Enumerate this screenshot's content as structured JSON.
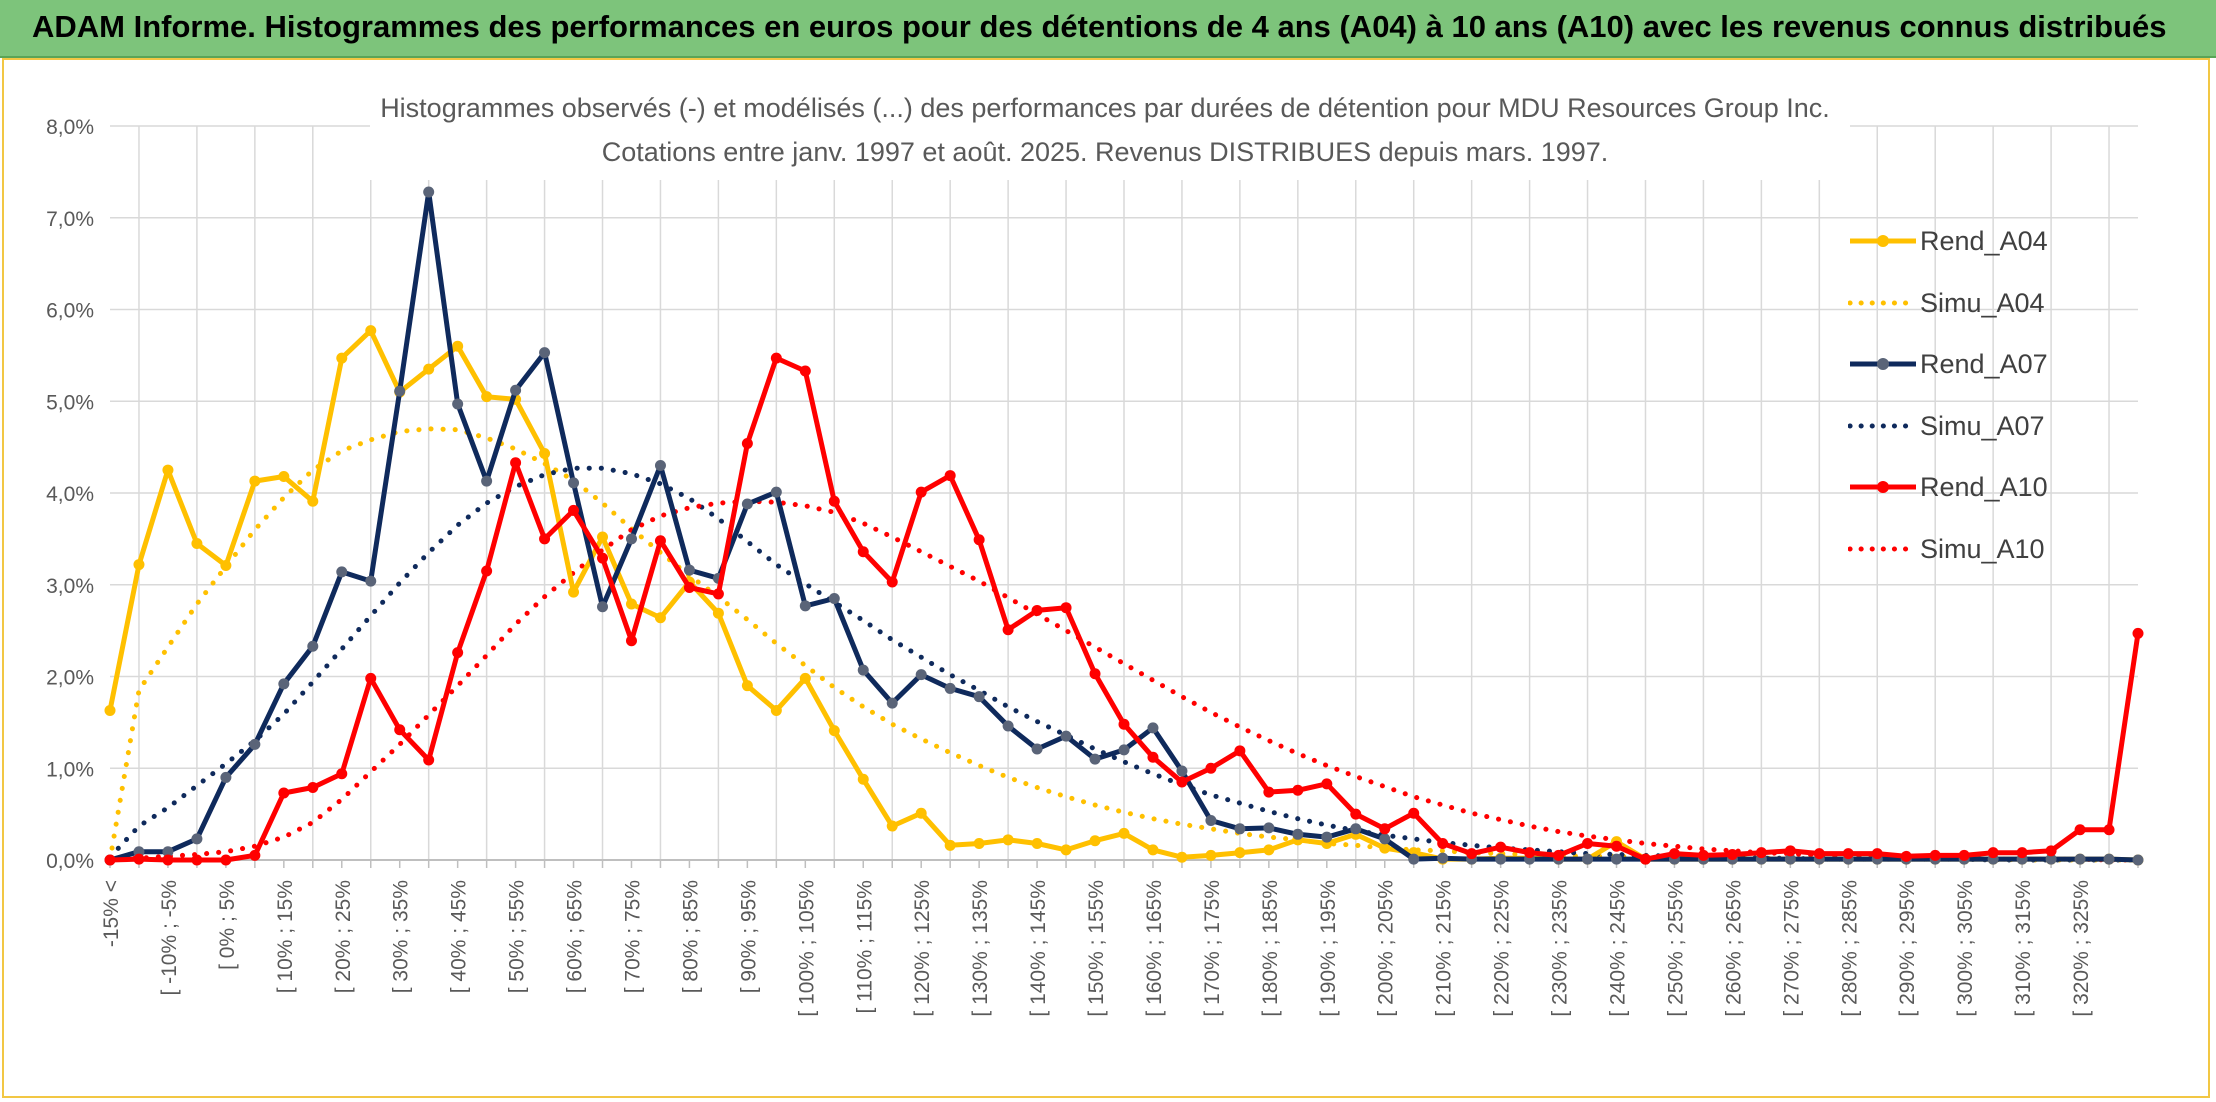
{
  "banner": {
    "title": "ADAM Informe. Histogrammes des performances en euros pour des détentions de 4 ans (A04) à 10 ans (A10) avec les revenus connus distribués"
  },
  "colors": {
    "banner": "#7dc47b",
    "frame": "#f2c744",
    "A04": "#ffc000",
    "A07": "#0f2a5c",
    "A10": "#ff0000",
    "grid": "#d9d9d9"
  },
  "chart_data": {
    "type": "line",
    "title": "Histogrammes observés (-) et modélisés (...) des performances par durées de détention pour MDU Resources Group Inc.",
    "subtitle": "Cotations entre janv. 1997 et août. 2025. Revenus DISTRIBUES depuis mars. 1997.",
    "ylim": [
      0,
      0.08
    ],
    "yticks": [
      "0,0%",
      "1,0%",
      "2,0%",
      "3,0%",
      "4,0%",
      "5,0%",
      "6,0%",
      "7,0%",
      "8,0%"
    ],
    "grid": true,
    "legend_position": "right",
    "categories": [
      "-15% <",
      "",
      "[ -10% ; -5%",
      "",
      "[ 0% ; 5%",
      "",
      "[ 10% ; 15%",
      "",
      "[ 20% ; 25%",
      "",
      "[ 30% ; 35%",
      "",
      "[ 40% ; 45%",
      "",
      "[ 50% ; 55%",
      "",
      "[ 60% ; 65%",
      "",
      "[ 70% ; 75%",
      "",
      "[ 80% ; 85%",
      "",
      "[ 90% ; 95%",
      "",
      "[ 100% ; 105%",
      "",
      "[ 110% ; 115%",
      "",
      "[ 120% ; 125%",
      "",
      "[ 130% ; 135%",
      "",
      "[ 140% ; 145%",
      "",
      "[ 150% ; 155%",
      "",
      "[ 160% ; 165%",
      "",
      "[ 170% ; 175%",
      "",
      "[ 180% ; 185%",
      "",
      "[ 190% ; 195%",
      "",
      "[ 200% ; 205%",
      "",
      "[ 210% ; 215%",
      "",
      "[ 220% ; 225%",
      "",
      "[ 230% ; 235%",
      "",
      "[ 240% ; 245%",
      "",
      "[ 250% ; 255%",
      "",
      "[ 260% ; 265%",
      "",
      "[ 270% ; 275%",
      "",
      "[ 280% ; 285%",
      "",
      "[ 290% ; 295%",
      "",
      "[ 300% ; 305%",
      "",
      "[ 310% ; 315%",
      "",
      "[ 320% ; 325%",
      "",
      ""
    ],
    "series": [
      {
        "name": "Rend_A04",
        "style": "solid",
        "color": "#ffc000",
        "values": [
          0.0163,
          0.0322,
          0.0425,
          0.0345,
          0.0321,
          0.0413,
          0.0418,
          0.0391,
          0.0547,
          0.0577,
          0.051,
          0.0535,
          0.056,
          0.0505,
          0.0502,
          0.0443,
          0.0292,
          0.0352,
          0.0279,
          0.0264,
          0.0303,
          0.0269,
          0.019,
          0.0163,
          0.0198,
          0.0141,
          0.0088,
          0.0037,
          0.0051,
          0.0016,
          0.0018,
          0.0022,
          0.0018,
          0.0011,
          0.0021,
          0.0029,
          0.0011,
          0.0003,
          0.0005,
          0.0008,
          0.0011,
          0.0022,
          0.0018,
          0.0028,
          0.0013,
          0.0008,
          0.0001,
          0.0001,
          0.0002,
          0.0002,
          0.0001,
          0.0001,
          0.002,
          0.0001,
          0.0001,
          0.0001,
          0.0001,
          0.0001,
          0.0001,
          0.0001,
          0.0001,
          0.0001,
          0.0001,
          0.0001,
          0.0001,
          0.0001,
          0.0001,
          0.0001,
          0.0001,
          0.0001,
          0.0
        ]
      },
      {
        "name": "Simu_A04",
        "style": "dotted",
        "color": "#ffc000",
        "values": [
          0.0,
          0.0185,
          0.0232,
          0.0279,
          0.032,
          0.036,
          0.0395,
          0.0425,
          0.0446,
          0.0458,
          0.0467,
          0.047,
          0.0469,
          0.046,
          0.0448,
          0.0432,
          0.0414,
          0.0389,
          0.0361,
          0.0335,
          0.031,
          0.0287,
          0.0262,
          0.0236,
          0.0212,
          0.0188,
          0.0167,
          0.0148,
          0.0132,
          0.0117,
          0.0103,
          0.009,
          0.0079,
          0.0069,
          0.006,
          0.0052,
          0.0045,
          0.0039,
          0.0034,
          0.0029,
          0.0025,
          0.0022,
          0.0018,
          0.0016,
          0.0013,
          0.0011,
          0.001,
          0.0008,
          0.0007,
          0.0006,
          0.0005,
          0.0004,
          0.0004,
          0.0003,
          0.0003,
          0.0002,
          0.0002,
          0.0002,
          0.0001,
          0.0001,
          0.0001,
          0.0001,
          0.0001,
          0.0001,
          0.0001,
          0.0001,
          0.0,
          0.0,
          0.0,
          0.0,
          0.0
        ]
      },
      {
        "name": "Rend_A07",
        "style": "solid",
        "color": "#0f2a5c",
        "values": [
          0.0,
          0.0009,
          0.0009,
          0.0023,
          0.009,
          0.0126,
          0.0192,
          0.0233,
          0.0314,
          0.0304,
          0.0511,
          0.0728,
          0.0497,
          0.0413,
          0.0512,
          0.0553,
          0.0411,
          0.0276,
          0.035,
          0.043,
          0.0316,
          0.0307,
          0.0388,
          0.0401,
          0.0277,
          0.0285,
          0.0207,
          0.0171,
          0.0202,
          0.0187,
          0.0178,
          0.0146,
          0.0121,
          0.0135,
          0.011,
          0.012,
          0.0144,
          0.0097,
          0.0043,
          0.0034,
          0.0035,
          0.0028,
          0.0025,
          0.0034,
          0.0023,
          0.0001,
          0.0002,
          0.0001,
          0.0001,
          0.0001,
          0.0001,
          0.0001,
          0.0001,
          0.0001,
          0.0001,
          0.0001,
          0.0001,
          0.0001,
          0.0001,
          0.0001,
          0.0001,
          0.0001,
          0.0001,
          0.0001,
          0.0001,
          0.0001,
          0.0001,
          0.0001,
          0.0001,
          0.0001,
          0.0
        ]
      },
      {
        "name": "Simu_A07",
        "style": "dotted",
        "color": "#0f2a5c",
        "values": [
          0.0003,
          0.0037,
          0.0057,
          0.0081,
          0.0105,
          0.013,
          0.0159,
          0.0194,
          0.023,
          0.0266,
          0.0302,
          0.0335,
          0.0365,
          0.0389,
          0.0407,
          0.042,
          0.0427,
          0.0427,
          0.0421,
          0.041,
          0.0394,
          0.0372,
          0.0347,
          0.0322,
          0.0301,
          0.0281,
          0.0261,
          0.024,
          0.0221,
          0.0202,
          0.0185,
          0.0167,
          0.0151,
          0.0136,
          0.0121,
          0.0107,
          0.0094,
          0.0082,
          0.0071,
          0.0062,
          0.0053,
          0.0045,
          0.0038,
          0.0032,
          0.0027,
          0.0023,
          0.0019,
          0.0016,
          0.0013,
          0.0011,
          0.0009,
          0.0007,
          0.0006,
          0.0005,
          0.0004,
          0.0003,
          0.0003,
          0.0002,
          0.0002,
          0.0001,
          0.0001,
          0.0001,
          0.0001,
          0.0001,
          0.0001,
          0.0,
          0.0,
          0.0,
          0.0,
          0.0,
          0.0
        ]
      },
      {
        "name": "Rend_A10",
        "style": "solid",
        "color": "#ff0000",
        "values": [
          0.0,
          0.0001,
          0.0,
          0.0,
          0.0,
          0.0005,
          0.0073,
          0.0079,
          0.0094,
          0.0198,
          0.0142,
          0.0109,
          0.0226,
          0.0315,
          0.0433,
          0.035,
          0.0381,
          0.0329,
          0.0239,
          0.0348,
          0.0297,
          0.029,
          0.0454,
          0.0547,
          0.0533,
          0.0391,
          0.0336,
          0.0303,
          0.0401,
          0.0419,
          0.0349,
          0.0251,
          0.0272,
          0.0275,
          0.0203,
          0.0148,
          0.0112,
          0.0085,
          0.01,
          0.0119,
          0.0074,
          0.0076,
          0.0083,
          0.005,
          0.0034,
          0.0051,
          0.0018,
          0.0007,
          0.0014,
          0.0008,
          0.0005,
          0.0018,
          0.0015,
          0.0001,
          0.0007,
          0.0005,
          0.0006,
          0.0008,
          0.001,
          0.0007,
          0.0007,
          0.0007,
          0.0004,
          0.0005,
          0.0005,
          0.0008,
          0.0008,
          0.001,
          0.0033,
          0.0033,
          0.0247
        ]
      },
      {
        "name": "Simu_A10",
        "style": "dotted",
        "color": "#ff0000",
        "values": [
          0.0,
          0.0002,
          0.0004,
          0.0006,
          0.0009,
          0.0015,
          0.0025,
          0.0041,
          0.0066,
          0.0096,
          0.0126,
          0.0158,
          0.019,
          0.0223,
          0.0257,
          0.0287,
          0.0313,
          0.0338,
          0.036,
          0.0375,
          0.0384,
          0.0389,
          0.0391,
          0.039,
          0.0386,
          0.0379,
          0.0367,
          0.0352,
          0.0336,
          0.032,
          0.0304,
          0.0286,
          0.0268,
          0.025,
          0.0232,
          0.0214,
          0.0196,
          0.0178,
          0.0161,
          0.0145,
          0.013,
          0.0116,
          0.0103,
          0.0091,
          0.008,
          0.0069,
          0.006,
          0.0051,
          0.0044,
          0.0037,
          0.0031,
          0.0026,
          0.0022,
          0.0018,
          0.0015,
          0.0012,
          0.001,
          0.0008,
          0.0007,
          0.0005,
          0.0004,
          0.0003,
          0.0003,
          0.0002,
          0.0002,
          0.0001,
          0.0001,
          0.0001,
          0.0001,
          0.0,
          0.0
        ]
      }
    ]
  }
}
